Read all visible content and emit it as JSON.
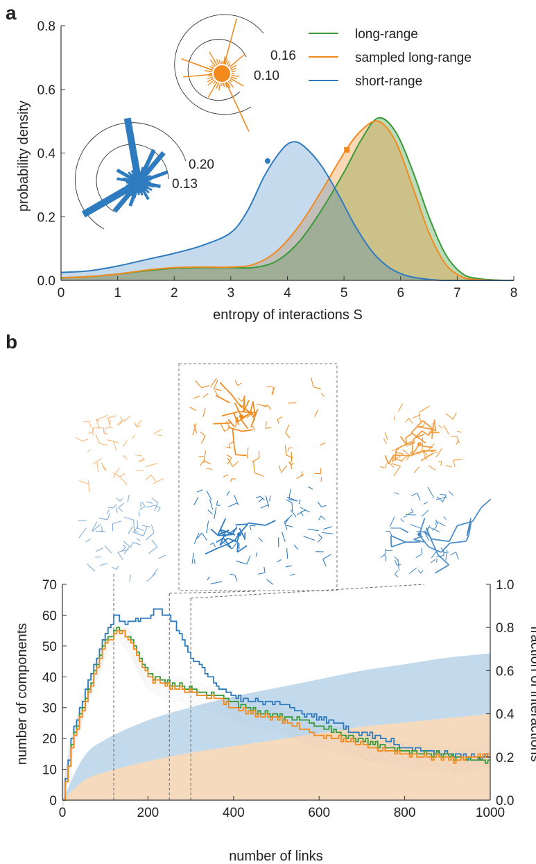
{
  "figure": {
    "panel_a": "a",
    "panel_b": "b"
  },
  "colors": {
    "short": "#2f7bbf",
    "long": "#3a9a3a",
    "sampled": "#f28a1e",
    "short_fill": "#b8d4ea",
    "sampled_fill": "#fcd9b8"
  },
  "chart_data": [
    {
      "type": "area",
      "xlabel": "entropy of interactions S",
      "ylabel": "probability density",
      "xlim": [
        0,
        8
      ],
      "ylim": [
        0,
        0.8
      ],
      "xticks": [
        0,
        1,
        2,
        3,
        4,
        5,
        6,
        7,
        8
      ],
      "yticks": [
        "0.0",
        "0.2",
        "0.4",
        "0.6",
        "0.8"
      ],
      "legend_position": "top-right",
      "series": [
        {
          "name": "long-range",
          "x": [
            0,
            0.5,
            1,
            1.5,
            2,
            2.5,
            3,
            3.4,
            3.8,
            4.2,
            4.6,
            5,
            5.3,
            5.6,
            5.9,
            6.2,
            6.5,
            6.8,
            7.1,
            7.4,
            7.8,
            8
          ],
          "y": [
            0.008,
            0.012,
            0.02,
            0.03,
            0.038,
            0.04,
            0.04,
            0.04,
            0.06,
            0.12,
            0.22,
            0.34,
            0.44,
            0.51,
            0.47,
            0.35,
            0.2,
            0.08,
            0.02,
            0.005,
            0,
            0
          ]
        },
        {
          "name": "sampled long-range",
          "x": [
            0,
            0.5,
            1,
            1.5,
            2,
            2.5,
            3,
            3.4,
            3.8,
            4.2,
            4.6,
            5,
            5.3,
            5.6,
            5.9,
            6.2,
            6.5,
            6.8,
            7.1,
            7.4,
            7.8,
            8
          ],
          "y": [
            0.008,
            0.012,
            0.02,
            0.032,
            0.04,
            0.042,
            0.042,
            0.05,
            0.09,
            0.17,
            0.28,
            0.4,
            0.47,
            0.5,
            0.44,
            0.3,
            0.15,
            0.05,
            0.01,
            0.002,
            0,
            0
          ]
        },
        {
          "name": "short-range",
          "x": [
            0,
            0.5,
            1,
            1.5,
            2,
            2.5,
            3,
            3.3,
            3.6,
            3.9,
            4.1,
            4.3,
            4.6,
            4.9,
            5.2,
            5.5,
            5.8,
            6.1,
            6.4,
            6.7,
            7,
            8
          ],
          "y": [
            0.025,
            0.03,
            0.045,
            0.065,
            0.085,
            0.11,
            0.15,
            0.22,
            0.33,
            0.41,
            0.435,
            0.42,
            0.36,
            0.27,
            0.17,
            0.09,
            0.04,
            0.015,
            0.005,
            0,
            0,
            0
          ]
        }
      ],
      "markers": [
        {
          "series": "short-range",
          "x": 3.65,
          "y": 0.375
        },
        {
          "series": "sampled long-range",
          "x": 5.05,
          "y": 0.41
        }
      ],
      "insets": [
        {
          "series": "sampled long-range",
          "ring_labels": [
            "0.16",
            "0.10"
          ]
        },
        {
          "series": "short-range",
          "ring_labels": [
            "0.20",
            "0.13"
          ]
        }
      ]
    },
    {
      "type": "line",
      "xlabel": "number of links",
      "ylabel": "number of components",
      "ylabel_right": "fraction of interactions",
      "xlim": [
        0,
        1000
      ],
      "ylim": [
        0,
        70
      ],
      "ylim_right": [
        0,
        1.0
      ],
      "xticks": [
        0,
        200,
        400,
        600,
        800,
        1000
      ],
      "yticks": [
        0,
        10,
        20,
        30,
        40,
        50,
        60,
        70
      ],
      "yticks_right": [
        "0.0",
        "0.2",
        "0.4",
        "0.6",
        "0.8",
        "1.0"
      ],
      "dashed_x": [
        120,
        250,
        300
      ],
      "series": [
        {
          "name": "short-range",
          "x": [
            0,
            20,
            40,
            60,
            80,
            100,
            120,
            140,
            160,
            200,
            220,
            240,
            260,
            280,
            300,
            320,
            340,
            360,
            400,
            440,
            480,
            520,
            560,
            600,
            640,
            680,
            700,
            750,
            800,
            850,
            900,
            950,
            1000
          ],
          "y": [
            0,
            20,
            30,
            39,
            46,
            54,
            60,
            58,
            58,
            59,
            62,
            60,
            58,
            52,
            46,
            44,
            40,
            37,
            34,
            32,
            32,
            31,
            28,
            27,
            25,
            22,
            22,
            20,
            17,
            16,
            15,
            14,
            14
          ]
        },
        {
          "name": "long-range",
          "x": [
            0,
            20,
            40,
            60,
            80,
            100,
            120,
            140,
            160,
            180,
            200,
            240,
            280,
            320,
            360,
            400,
            440,
            480,
            520,
            560,
            600,
            640,
            680,
            720,
            760,
            800,
            840,
            880,
            920,
            960,
            1000
          ],
          "y": [
            0,
            18,
            28,
            36,
            44,
            52,
            55,
            55,
            52,
            46,
            41,
            38,
            37,
            35,
            34,
            32,
            29,
            28,
            27,
            26,
            24,
            22,
            20,
            19,
            17,
            16,
            15,
            15,
            14,
            13,
            13
          ]
        },
        {
          "name": "sampled long-range",
          "x": [
            0,
            20,
            40,
            60,
            80,
            100,
            120,
            140,
            160,
            180,
            200,
            240,
            280,
            320,
            360,
            400,
            440,
            480,
            520,
            560,
            600,
            640,
            680,
            720,
            760,
            800,
            840,
            880,
            920,
            960,
            1000
          ],
          "y": [
            0,
            17,
            27,
            35,
            43,
            51,
            54,
            55,
            51,
            45,
            40,
            37,
            36,
            34,
            33,
            30,
            28,
            27,
            26,
            23,
            21,
            20,
            19,
            17,
            16,
            15,
            14,
            14,
            13,
            14,
            15
          ]
        }
      ],
      "bands": [
        {
          "series": "short-range",
          "right_axis_at_x": [
            0,
            50,
            100,
            200,
            300,
            400,
            500,
            600,
            700,
            800,
            900,
            1000
          ],
          "upper": [
            0,
            0.2,
            0.28,
            0.37,
            0.43,
            0.48,
            0.52,
            0.56,
            0.6,
            0.63,
            0.66,
            0.68
          ]
        },
        {
          "series": "sampled long-range",
          "right_axis_at_x": [
            0,
            50,
            100,
            200,
            300,
            400,
            500,
            600,
            700,
            800,
            900,
            1000
          ],
          "upper": [
            0,
            0.09,
            0.13,
            0.18,
            0.22,
            0.25,
            0.28,
            0.31,
            0.34,
            0.36,
            0.38,
            0.4
          ]
        }
      ]
    }
  ]
}
